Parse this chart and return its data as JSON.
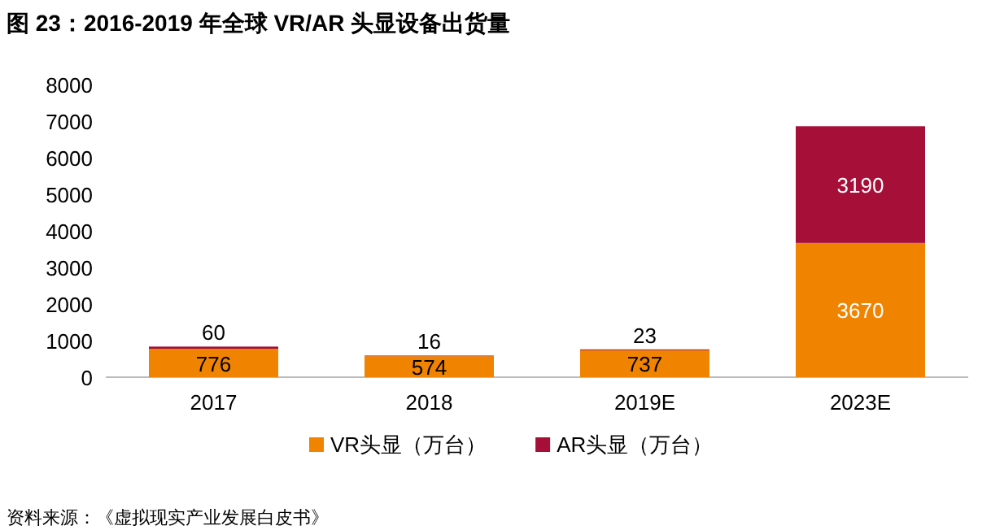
{
  "chart_data": {
    "type": "bar",
    "title": "图 23：2016-2019 年全球 VR/AR 头显设备出货量",
    "stacked": true,
    "categories": [
      "2017",
      "2018",
      "2019E",
      "2023E"
    ],
    "series": [
      {
        "name": "VR头显（万台）",
        "color": "#f08300",
        "values": [
          776,
          574,
          737,
          3670
        ]
      },
      {
        "name": "AR头显（万台）",
        "color": "#a50f38",
        "values": [
          60,
          16,
          23,
          3190
        ]
      }
    ],
    "ylim": [
      0,
      8000
    ],
    "yticks": [
      0,
      1000,
      2000,
      3000,
      4000,
      5000,
      6000,
      7000,
      8000
    ],
    "grid": false,
    "legend": "bottom",
    "data_labels": true,
    "annotations": [
      "资料来源：《虚拟现实产业发展白皮书》"
    ]
  }
}
